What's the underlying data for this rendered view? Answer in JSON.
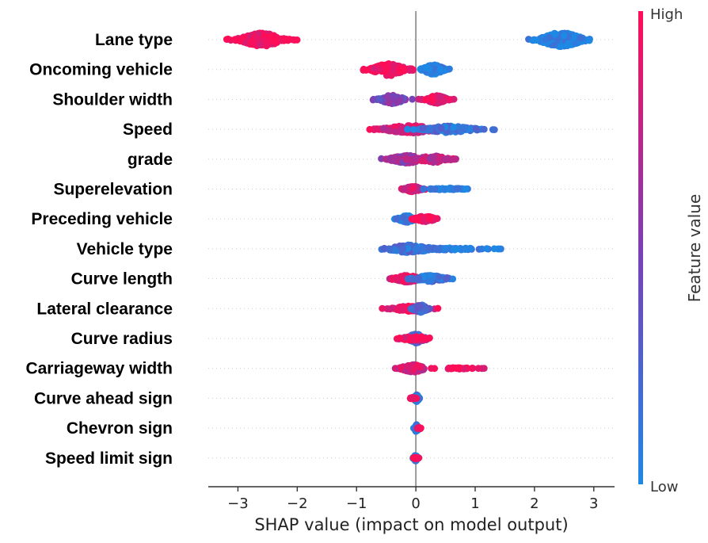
{
  "chart_data": {
    "type": "scatter",
    "subtype": "shap-beeswarm",
    "title": "",
    "xlabel": "SHAP value (impact on model output)",
    "ylabel": "",
    "xlim": [
      -3.5,
      3.35
    ],
    "xticks": [
      -3,
      -2,
      -1,
      0,
      1,
      2,
      3
    ],
    "xtick_labels": [
      "−3",
      "−2",
      "−1",
      "0",
      "1",
      "2",
      "3"
    ],
    "colorbar": {
      "title": "Feature value",
      "high_label": "High",
      "low_label": "Low",
      "high_color": "#ff0d57",
      "low_color": "#1e88e5",
      "mid_color": "#7c3fb5"
    },
    "features": [
      {
        "name": "Lane type",
        "clusters": [
          {
            "center": -2.6,
            "spread": 0.45,
            "width": 0.6,
            "count": 260,
            "color": 1.0
          },
          {
            "center": 2.45,
            "spread": 0.45,
            "width": 0.65,
            "count": 260,
            "color": 0.0
          }
        ]
      },
      {
        "name": "Oncoming vehicle",
        "clusters": [
          {
            "center": -0.45,
            "spread": 0.35,
            "width": 0.55,
            "count": 170,
            "color": 1.0
          },
          {
            "center": 0.3,
            "spread": 0.22,
            "width": 0.45,
            "count": 160,
            "color": 0.0
          }
        ]
      },
      {
        "name": "Shoulder width",
        "clusters": [
          {
            "center": -0.4,
            "spread": 0.25,
            "width": 0.4,
            "count": 110,
            "color": 0.45
          },
          {
            "center": 0.35,
            "spread": 0.22,
            "width": 0.35,
            "count": 110,
            "color": 0.9
          }
        ]
      },
      {
        "name": "Speed",
        "clusters": [
          {
            "center": -0.1,
            "spread": 0.55,
            "width": 0.35,
            "count": 150,
            "color": 0.85
          },
          {
            "center": 0.55,
            "spread": 0.55,
            "width": 0.3,
            "count": 110,
            "color": 0.15
          }
        ]
      },
      {
        "name": "grade",
        "clusters": [
          {
            "center": -0.15,
            "spread": 0.35,
            "width": 0.35,
            "count": 160,
            "color": 0.6
          },
          {
            "center": 0.3,
            "spread": 0.35,
            "width": 0.3,
            "count": 90,
            "color": 0.75
          }
        ]
      },
      {
        "name": "Superelevation",
        "clusters": [
          {
            "center": -0.05,
            "spread": 0.18,
            "width": 0.25,
            "count": 90,
            "color": 0.8
          },
          {
            "center": 0.55,
            "spread": 0.35,
            "width": 0.1,
            "count": 55,
            "color": 0.0
          }
        ]
      },
      {
        "name": "Preceding vehicle",
        "clusters": [
          {
            "center": -0.15,
            "spread": 0.18,
            "width": 0.3,
            "count": 90,
            "color": 0.05
          },
          {
            "center": 0.15,
            "spread": 0.2,
            "width": 0.3,
            "count": 90,
            "color": 0.95
          }
        ]
      },
      {
        "name": "Vehicle type",
        "clusters": [
          {
            "center": -0.1,
            "spread": 0.45,
            "width": 0.35,
            "count": 130,
            "color": 0.2
          },
          {
            "center": 0.6,
            "spread": 0.7,
            "width": 0.1,
            "count": 60,
            "color": 0.05
          }
        ]
      },
      {
        "name": "Curve length",
        "clusters": [
          {
            "center": -0.15,
            "spread": 0.28,
            "width": 0.3,
            "count": 110,
            "color": 0.9
          },
          {
            "center": 0.25,
            "spread": 0.35,
            "width": 0.3,
            "count": 90,
            "color": 0.15
          }
        ]
      },
      {
        "name": "Lateral clearance",
        "clusters": [
          {
            "center": -0.1,
            "spread": 0.35,
            "width": 0.25,
            "count": 80,
            "color": 0.9
          },
          {
            "center": 0.08,
            "spread": 0.15,
            "width": 0.35,
            "count": 110,
            "color": 0.3
          }
        ]
      },
      {
        "name": "Curve radius",
        "clusters": [
          {
            "center": 0.0,
            "spread": 0.2,
            "width": 0.4,
            "count": 130,
            "color": 0.25
          },
          {
            "center": 0.0,
            "spread": 0.35,
            "width": 0.2,
            "count": 40,
            "color": 0.95
          }
        ]
      },
      {
        "name": "Carriageway width",
        "clusters": [
          {
            "center": -0.05,
            "spread": 0.25,
            "width": 0.35,
            "count": 110,
            "color": 0.8
          },
          {
            "center": 0.7,
            "spread": 0.4,
            "width": 0.06,
            "count": 35,
            "color": 1.0
          }
        ]
      },
      {
        "name": "Curve ahead sign",
        "clusters": [
          {
            "center": 0.01,
            "spread": 0.05,
            "width": 0.35,
            "count": 50,
            "color": 0.05
          },
          {
            "center": -0.05,
            "spread": 0.06,
            "width": 0.08,
            "count": 10,
            "color": 1.0
          }
        ]
      },
      {
        "name": "Chevron sign",
        "clusters": [
          {
            "center": 0.01,
            "spread": 0.04,
            "width": 0.35,
            "count": 45,
            "color": 0.05
          },
          {
            "center": 0.06,
            "spread": 0.05,
            "width": 0.1,
            "count": 8,
            "color": 1.0
          }
        ]
      },
      {
        "name": "Speed limit sign",
        "clusters": [
          {
            "center": 0.0,
            "spread": 0.04,
            "width": 0.3,
            "count": 40,
            "color": 0.05
          },
          {
            "center": 0.0,
            "spread": 0.06,
            "width": 0.1,
            "count": 12,
            "color": 1.0
          }
        ]
      }
    ]
  }
}
